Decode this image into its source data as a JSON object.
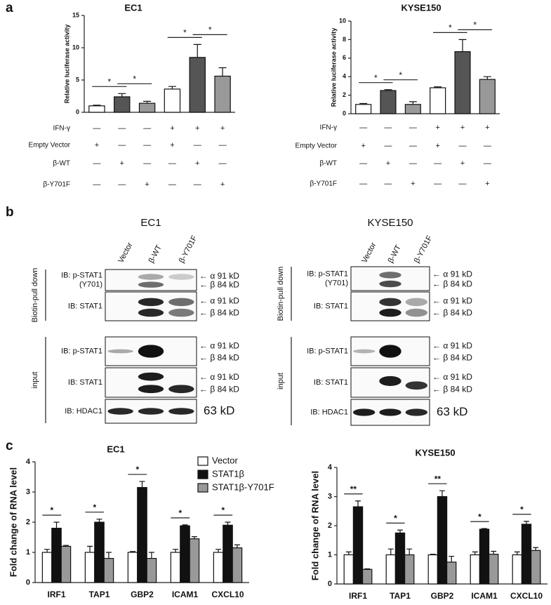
{
  "panel_labels": [
    "a",
    "b",
    "c"
  ],
  "chart_data": [
    {
      "type": "bar",
      "title": "EC1",
      "ylabel": "Relative luciferase activity",
      "ylim": [
        0,
        15
      ],
      "yticks": [
        0,
        5,
        10,
        15
      ],
      "values": [
        1.0,
        2.4,
        1.4,
        3.6,
        8.5,
        5.6
      ],
      "errors": [
        0.1,
        0.5,
        0.3,
        0.4,
        2.0,
        1.3
      ],
      "colors": [
        "#ffffff",
        "#555555",
        "#999999",
        "#ffffff",
        "#555555",
        "#999999"
      ],
      "significance": [
        "*",
        "*",
        "*",
        "*"
      ],
      "conditions": [
        {
          "label": "IFN-γ",
          "signs": [
            "—",
            "—",
            "—",
            "+",
            "+",
            "+"
          ]
        },
        {
          "label": "Empty Vector",
          "signs": [
            "+",
            "—",
            "—",
            "+",
            "—",
            "—"
          ]
        },
        {
          "label": "β-WT",
          "signs": [
            "—",
            "+",
            "—",
            "—",
            "+",
            "—"
          ]
        },
        {
          "label": "β-Y701F",
          "signs": [
            "—",
            "—",
            "+",
            "—",
            "—",
            "+"
          ]
        }
      ]
    },
    {
      "type": "bar",
      "title": "KYSE150",
      "ylabel": "Relative luciferase activity",
      "ylim": [
        0,
        10
      ],
      "yticks": [
        0,
        2,
        4,
        6,
        8,
        10
      ],
      "values": [
        1.0,
        2.5,
        1.0,
        2.8,
        6.7,
        3.7
      ],
      "errors": [
        0.1,
        0.1,
        0.3,
        0.1,
        1.3,
        0.3
      ],
      "colors": [
        "#ffffff",
        "#555555",
        "#999999",
        "#ffffff",
        "#555555",
        "#999999"
      ],
      "significance": [
        "*",
        "*",
        "*",
        "*"
      ],
      "conditions": [
        {
          "label": "IFN-γ",
          "signs": [
            "—",
            "—",
            "—",
            "+",
            "+",
            "+"
          ]
        },
        {
          "label": "Empty Vector",
          "signs": [
            "+",
            "—",
            "—",
            "+",
            "—",
            "—"
          ]
        },
        {
          "label": "β-WT",
          "signs": [
            "—",
            "+",
            "—",
            "—",
            "+",
            "—"
          ]
        },
        {
          "label": "β-Y701F",
          "signs": [
            "—",
            "—",
            "+",
            "—",
            "—",
            "+"
          ]
        }
      ]
    },
    {
      "type": "grouped-bar",
      "title": "EC1",
      "ylabel": "Fold change of RNA level",
      "ylim": [
        0,
        4
      ],
      "yticks": [
        0,
        1,
        2,
        3,
        4
      ],
      "categories": [
        "IRF1",
        "TAP1",
        "GBP2",
        "ICAM1",
        "CXCL10"
      ],
      "series": [
        {
          "name": "Vector",
          "color": "#ffffff",
          "values": [
            1,
            1,
            1,
            1,
            1
          ],
          "errors": [
            0.1,
            0.2,
            0.03,
            0.1,
            0.1
          ]
        },
        {
          "name": "STAT1β",
          "color": "#111111",
          "values": [
            1.8,
            2.0,
            3.15,
            1.88,
            1.9
          ],
          "errors": [
            0.2,
            0.1,
            0.2,
            0.03,
            0.1
          ]
        },
        {
          "name": "STAT1β-Y701F",
          "color": "#999999",
          "values": [
            1.2,
            0.8,
            0.8,
            1.45,
            1.15
          ],
          "errors": [
            0.03,
            0.2,
            0.2,
            0.07,
            0.1
          ]
        }
      ],
      "significance": [
        "*",
        "*",
        "*",
        "*",
        "*"
      ]
    },
    {
      "type": "grouped-bar",
      "title": "KYSE150",
      "ylabel": "Fold change of RNA level",
      "ylim": [
        0,
        4
      ],
      "yticks": [
        0,
        1,
        2,
        3,
        4
      ],
      "categories": [
        "IRF1",
        "TAP1",
        "GBP2",
        "ICAM1",
        "CXCL10"
      ],
      "series": [
        {
          "color": "#ffffff",
          "values": [
            1,
            1,
            1,
            1,
            1
          ],
          "errors": [
            0.1,
            0.2,
            0.02,
            0.1,
            0.1
          ]
        },
        {
          "color": "#111111",
          "values": [
            2.65,
            1.75,
            3.0,
            1.88,
            2.05
          ],
          "errors": [
            0.2,
            0.1,
            0.2,
            0.02,
            0.1
          ]
        },
        {
          "color": "#999999",
          "values": [
            0.5,
            1.0,
            0.75,
            1.02,
            1.15
          ],
          "errors": [
            0.02,
            0.2,
            0.2,
            0.1,
            0.1
          ]
        }
      ],
      "significance": [
        "**",
        "*",
        "**",
        "*",
        "*"
      ]
    }
  ],
  "blots": [
    {
      "title": "EC1",
      "lanes": [
        "Vector",
        "β-WT",
        "β-Y701F"
      ],
      "groups": [
        "Biotin-pull down",
        "input"
      ],
      "rows": [
        {
          "label": [
            "IB: p-STAT1",
            "(Y701)"
          ],
          "markers": [
            "← α 91 kD",
            "← β 84 kD"
          ]
        },
        {
          "label": [
            "IB: STAT1"
          ],
          "markers": [
            "← α 91 kD",
            "← β 84 kD"
          ]
        },
        {
          "label": [
            "IB: p-STAT1"
          ],
          "markers": [
            "← α 91 kD",
            "← β 84 kD"
          ]
        },
        {
          "label": [
            "IB: STAT1"
          ],
          "markers": [
            "← α 91 kD",
            "← β 84 kD"
          ]
        },
        {
          "label": [
            "IB: HDAC1"
          ],
          "markers": [
            "63 kD"
          ]
        }
      ]
    },
    {
      "title": "KYSE150",
      "lanes": [
        "Vector",
        "β-WT",
        "β-Y701F"
      ],
      "groups": [
        "Biotin-pull down",
        "input"
      ],
      "rows": [
        {
          "label": [
            "IB: p-STAT1",
            "(Y701)"
          ],
          "markers": [
            "← α 91 kD",
            "← β 84 kD"
          ]
        },
        {
          "label": [
            "IB: STAT1"
          ],
          "markers": [
            "← α 91 kD",
            "← β 84 kD"
          ]
        },
        {
          "label": [
            "IB: p-STAT1"
          ],
          "markers": [
            "← α 91 kD",
            "← β 84 kD"
          ]
        },
        {
          "label": [
            "IB: STAT1"
          ],
          "markers": [
            "← α 91 kD",
            "← β 84 kD"
          ]
        },
        {
          "label": [
            "IB: HDAC1"
          ],
          "markers": [
            "63 kD"
          ]
        }
      ]
    }
  ]
}
